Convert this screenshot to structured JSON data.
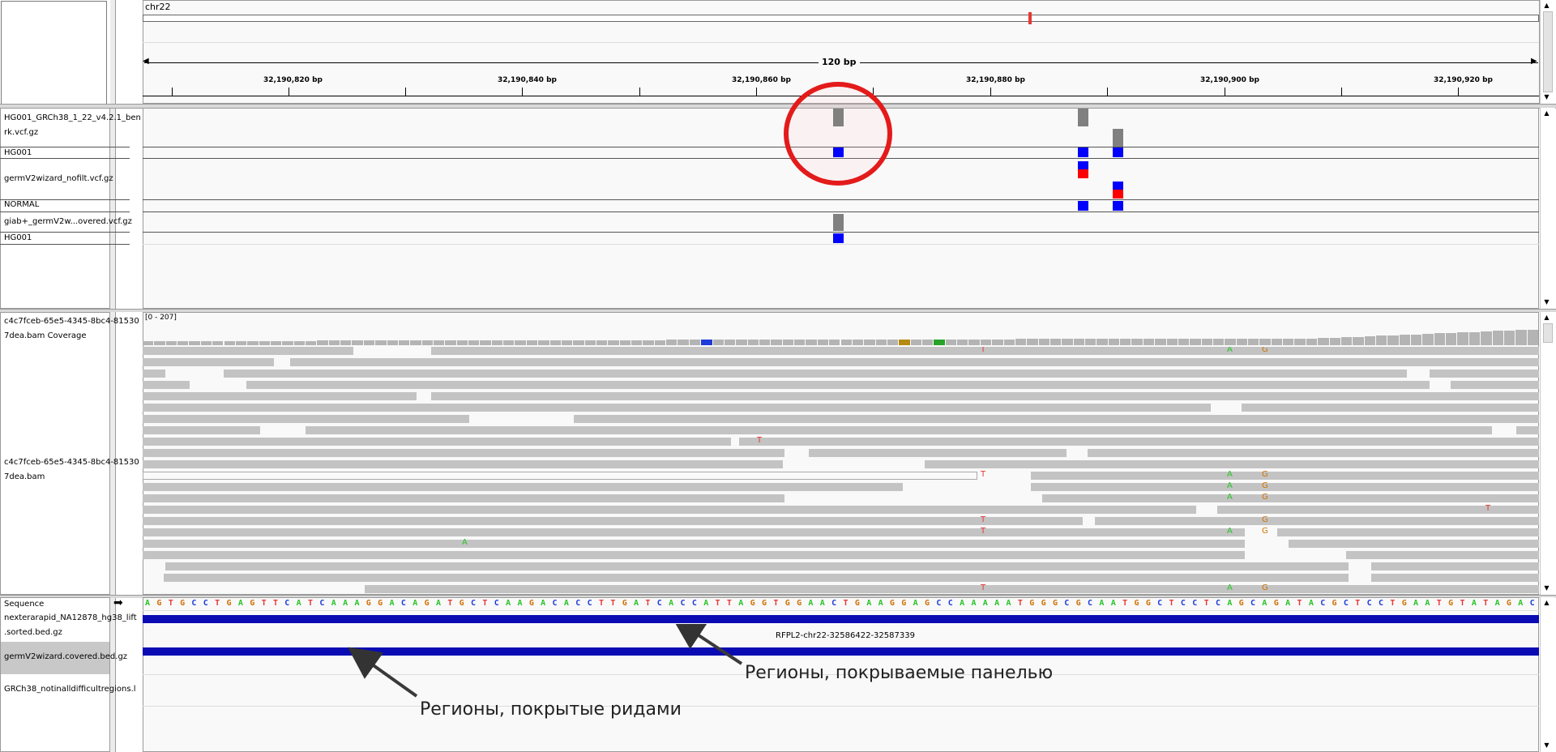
{
  "ruler": {
    "chromosome": "chr22",
    "span_label": "120 bp",
    "ticks": [
      {
        "label": "32,190,820 bp",
        "x": 356
      },
      {
        "label": "32,190,840 bp",
        "x": 644
      },
      {
        "label": "32,190,860 bp",
        "x": 933
      },
      {
        "label": "32,190,880 bp",
        "x": 1222
      },
      {
        "label": "32,190,900 bp",
        "x": 1511
      },
      {
        "label": "32,190,920 bp",
        "x": 1800
      }
    ],
    "cytoband_marker_color": "#e53935"
  },
  "variant_tracks": {
    "labels": [
      {
        "name": "track-label-benchmark-vcf-line1",
        "text": "HG001_GRCh38_1_22_v4.2.1_ben"
      },
      {
        "name": "track-label-benchmark-vcf-line2",
        "text": "rk.vcf.gz"
      },
      {
        "name": "track-label-hg001-sample-1",
        "text": "HG001"
      },
      {
        "name": "track-label-germline-nofilt-vcf",
        "text": "germV2wizard_nofilt.vcf.gz"
      },
      {
        "name": "track-label-normal-sample",
        "text": "NORMAL"
      },
      {
        "name": "track-label-giab-covered-vcf",
        "text": "giab+_germV2w...overed.vcf.gz"
      },
      {
        "name": "track-label-hg001-sample-2",
        "text": "HG001"
      }
    ],
    "highlight_color": "#e31b1b"
  },
  "alignments": {
    "coverage_label_line1": "c4c7fceb-65e5-4345-8bc4-81530",
    "coverage_label_line2": "7dea.bam Coverage",
    "bam_label_line1": "c4c7fceb-65e5-4345-8bc4-81530",
    "bam_label_line2": "7dea.bam",
    "coverage_range": "[0 - 207]",
    "mismatch_colors": {
      "T": "#e53935",
      "A": "#27c427",
      "G": "#d17105",
      "C": "#1e3cd8"
    }
  },
  "sequence": {
    "label": "Sequence",
    "arrow_glyph": "➡",
    "bases": "AGTGCCTGAGTTCATCAAAGGACAGATGCTCAAGACACCTTGATCACCATTAGGTGGAACTGAAGGAGCCAAAAATGGGCGCAATGGCTCCTCAGCAGATACGCTCCTGAATGTATAGAC"
  },
  "feature_tracks": {
    "bed1_label_line1": "nexterarapid_NA12878_hg38_lift",
    "bed1_label_line2": ".sorted.bed.gz",
    "bed1_feature_name": "RFPL2-chr22-32586422-32587339",
    "bed2_label": "germV2wizard.covered.bed.gz",
    "bed3_label": "GRCh38_notinalldifficultregions.l",
    "feature_color": "#0b0bb4"
  },
  "annotations": {
    "panel_regions": "Регионы, покрываемые панелью",
    "read_regions": "Регионы, покрытые ридами"
  }
}
